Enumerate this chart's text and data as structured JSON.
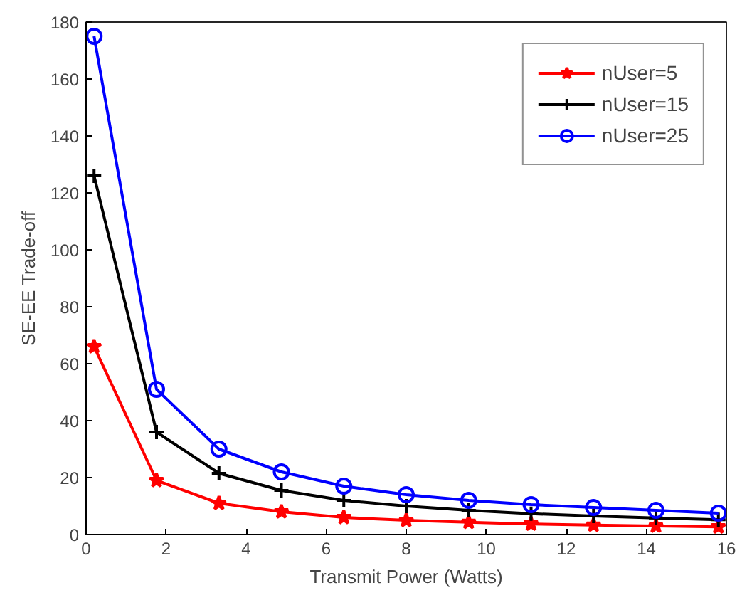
{
  "chart_data": {
    "type": "line",
    "xlabel": "Transmit Power (Watts)",
    "ylabel": "SE-EE Trade-off",
    "x": [
      0.2,
      1.76,
      3.32,
      4.88,
      6.44,
      8.0,
      9.56,
      11.12,
      12.68,
      14.24,
      15.8
    ],
    "series": [
      {
        "name": "nUser=5",
        "color": "#ff0000",
        "marker": "star",
        "values": [
          66,
          19,
          11,
          8,
          6,
          5,
          4.3,
          3.7,
          3.3,
          3,
          2.7
        ]
      },
      {
        "name": "nUser=15",
        "color": "#000000",
        "marker": "cross",
        "values": [
          126,
          36,
          21.5,
          15.5,
          12,
          10,
          8.5,
          7.3,
          6.5,
          5.8,
          5.2
        ]
      },
      {
        "name": "nUser=25",
        "color": "#0000ff",
        "marker": "circle",
        "values": [
          175,
          51,
          30,
          22,
          17,
          14,
          12,
          10.5,
          9.5,
          8.5,
          7.5
        ]
      }
    ],
    "xlim": [
      0,
      16
    ],
    "xticks": [
      0,
      2,
      4,
      6,
      8,
      10,
      12,
      14,
      16
    ],
    "ylim": [
      0,
      180
    ],
    "yticks": [
      0,
      20,
      40,
      60,
      80,
      100,
      120,
      140,
      160,
      180
    ],
    "grid": false,
    "legend": "top right",
    "line_style": "solid"
  }
}
